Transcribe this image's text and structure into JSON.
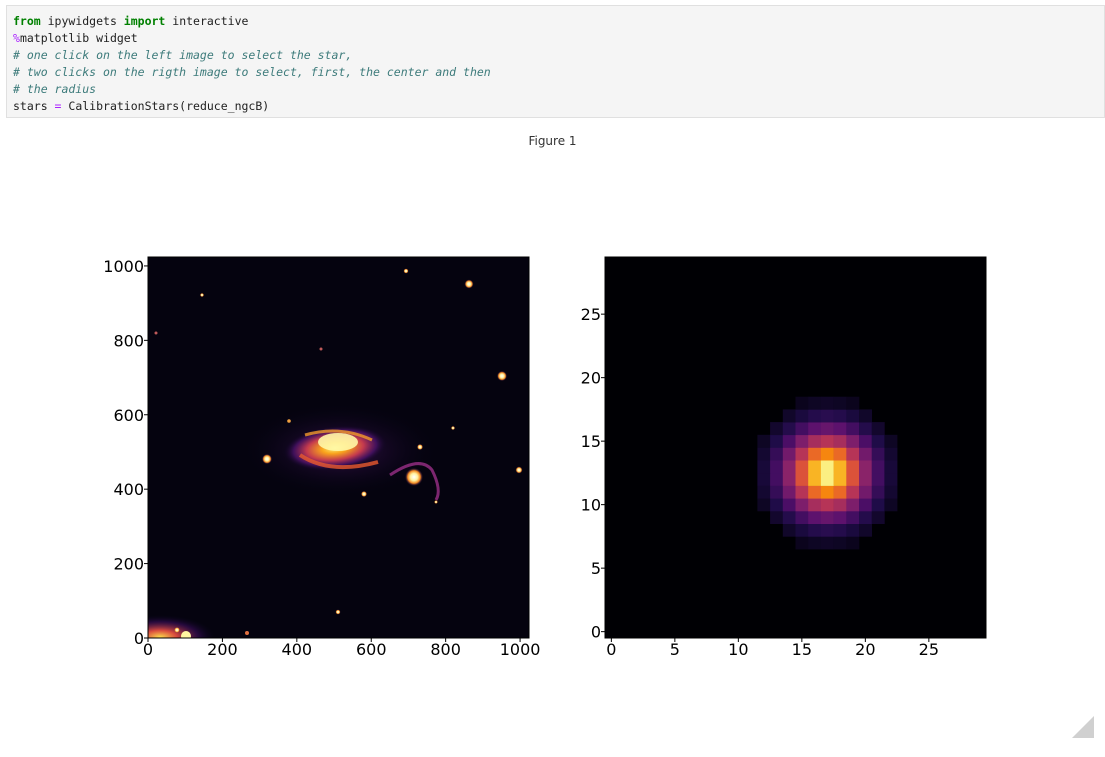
{
  "code_cell": {
    "lines": [
      [
        {
          "t": "from",
          "c": "kw"
        },
        {
          "t": " ipywidgets ",
          "c": ""
        },
        {
          "t": "import",
          "c": "kw"
        },
        {
          "t": " interactive",
          "c": ""
        }
      ],
      [
        {
          "t": "%",
          "c": "magic"
        },
        {
          "t": "matplotlib widget",
          "c": ""
        }
      ],
      [
        {
          "t": "# one click on the left image to select the star,",
          "c": "cm"
        }
      ],
      [
        {
          "t": "# two clicks on the rigth image to select, first, the center and then",
          "c": "cm"
        }
      ],
      [
        {
          "t": "# the radius",
          "c": "cm"
        }
      ],
      [
        {
          "t": "stars ",
          "c": ""
        },
        {
          "t": "=",
          "c": "op"
        },
        {
          "t": " CalibrationStars(reduce_ngcB)",
          "c": ""
        }
      ]
    ]
  },
  "figure": {
    "title": "Figure 1"
  },
  "chart_data": [
    {
      "type": "heatmap",
      "title": "",
      "xlabel": "",
      "ylabel": "",
      "colormap": "inferno",
      "xlim": [
        0,
        1024
      ],
      "ylim": [
        0,
        1024
      ],
      "xticks": [
        "0",
        "200",
        "400",
        "600",
        "800",
        "1000"
      ],
      "yticks": [
        "0",
        "200",
        "400",
        "600",
        "800",
        "1000"
      ],
      "content": "astronomical image of an interacting galaxy pair with field stars"
    },
    {
      "type": "heatmap",
      "title": "",
      "xlabel": "",
      "ylabel": "",
      "colormap": "inferno",
      "xlim": [
        -0.5,
        29.5
      ],
      "ylim": [
        -0.5,
        29.5
      ],
      "xticks": [
        "0",
        "5",
        "10",
        "15",
        "20",
        "25"
      ],
      "yticks": [
        "0",
        "5",
        "10",
        "15",
        "20",
        "25"
      ],
      "star_center": [
        17,
        12.5
      ],
      "content": "30x30 pixel cutout of a single star"
    }
  ],
  "icons": {
    "resize_handle": "resize-handle-icon"
  }
}
